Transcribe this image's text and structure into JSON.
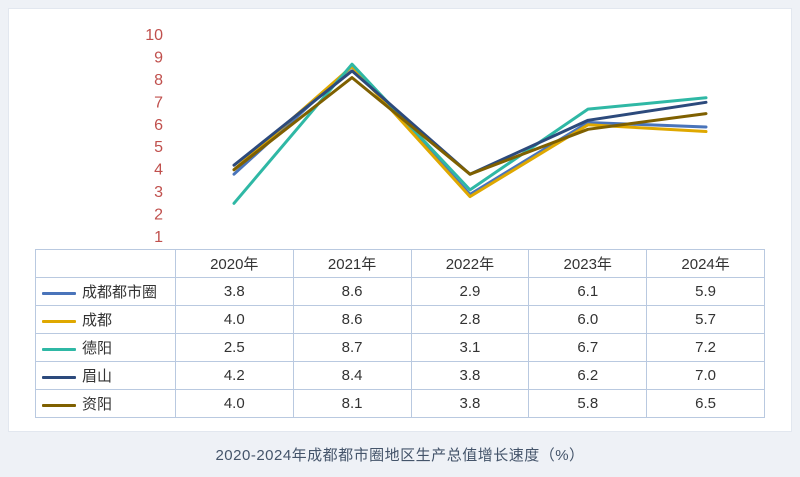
{
  "caption": "2020-2024年成都都市圈地区生产总值增长速度（%）",
  "chart_data": {
    "type": "line",
    "title": "2020-2024年成都都市圈地区生产总值增长速度（%）",
    "categories": [
      "2020年",
      "2021年",
      "2022年",
      "2023年",
      "2024年"
    ],
    "series": [
      {
        "name": "成都都市圈",
        "color": "#4a74ba",
        "values": [
          3.8,
          8.6,
          2.9,
          6.1,
          5.9
        ]
      },
      {
        "name": "成都",
        "color": "#dfa800",
        "values": [
          4.0,
          8.6,
          2.8,
          6.0,
          5.7
        ]
      },
      {
        "name": "德阳",
        "color": "#2fb8a5",
        "values": [
          2.5,
          8.7,
          3.1,
          6.7,
          7.2
        ]
      },
      {
        "name": "眉山",
        "color": "#2c4a7c",
        "values": [
          4.2,
          8.4,
          3.8,
          6.2,
          7.0
        ]
      },
      {
        "name": "资阳",
        "color": "#7f6000",
        "values": [
          4.0,
          8.1,
          3.8,
          5.8,
          6.5
        ]
      }
    ],
    "ylim": [
      1,
      10
    ],
    "ytick_step": 1,
    "ytick_color": "#c0504d",
    "grid": false,
    "legend_position": "table-first-column",
    "xlabel": "",
    "ylabel": ""
  }
}
